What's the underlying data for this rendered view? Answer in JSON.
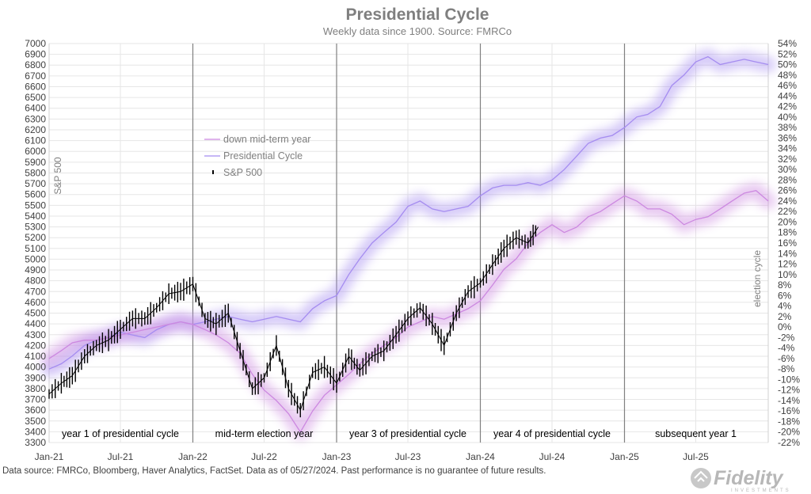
{
  "chart_data": {
    "type": "line",
    "title": "Presidential Cycle",
    "subtitle": "Weekly data since 1900. Source: FMRCo",
    "ylabel": "S&P 500",
    "y2label": "election cycle",
    "ylim": [
      3300,
      7000
    ],
    "ytick_step": 100,
    "y2lim": [
      -22,
      54
    ],
    "y2tick_step": 2,
    "xlim": [
      "2021-01-01",
      "2026-01-01"
    ],
    "x_ticks": [
      {
        "date": "2021-01-01",
        "label": "Jan-21"
      },
      {
        "date": "2021-07-01",
        "label": "Jul-21"
      },
      {
        "date": "2022-01-01",
        "label": "Jan-22"
      },
      {
        "date": "2022-07-01",
        "label": "Jul-22"
      },
      {
        "date": "2023-01-01",
        "label": "Jan-23"
      },
      {
        "date": "2023-07-01",
        "label": "Jul-23"
      },
      {
        "date": "2024-01-01",
        "label": "Jan-24"
      },
      {
        "date": "2024-07-01",
        "label": "Jul-24"
      },
      {
        "date": "2025-01-01",
        "label": "Jan-25"
      },
      {
        "date": "2025-07-01",
        "label": "Jul-25"
      }
    ],
    "year_dividers": [
      "2022-01-01",
      "2023-01-01",
      "2024-01-01",
      "2025-01-01"
    ],
    "periods": [
      {
        "label": "year 1 of presidential cycle",
        "center": "2021-07-01"
      },
      {
        "label": "mid-term election year",
        "center": "2022-07-01"
      },
      {
        "label": "year 3 of presidential cycle",
        "center": "2023-07-01"
      },
      {
        "label": "year 4 of presidential cycle",
        "center": "2024-07-01"
      },
      {
        "label": "subsequent year 1",
        "center": "2025-07-01"
      }
    ],
    "legend": {
      "position": "upper-left",
      "entries": [
        "down mid-term year",
        "Presidential Cycle",
        "S&P 500"
      ]
    },
    "grid": true,
    "series": [
      {
        "name": "Presidential Cycle",
        "axis": "right",
        "color": "#a58cf0",
        "points": [
          [
            "2021-01-01",
            -8.0
          ],
          [
            "2021-02-01",
            -7.0
          ],
          [
            "2021-03-01",
            -5.5
          ],
          [
            "2021-04-01",
            -3.5
          ],
          [
            "2021-05-01",
            -2.5
          ],
          [
            "2021-06-01",
            -2.0
          ],
          [
            "2021-07-01",
            -1.0
          ],
          [
            "2021-08-01",
            -1.5
          ],
          [
            "2021-09-01",
            -2.0
          ],
          [
            "2021-10-01",
            -0.5
          ],
          [
            "2021-11-01",
            0.5
          ],
          [
            "2021-12-01",
            1.0
          ],
          [
            "2022-01-01",
            0.5
          ],
          [
            "2022-02-01",
            1.0
          ],
          [
            "2022-03-01",
            1.5
          ],
          [
            "2022-04-01",
            2.0
          ],
          [
            "2022-05-01",
            1.5
          ],
          [
            "2022-06-01",
            1.0
          ],
          [
            "2022-07-01",
            1.5
          ],
          [
            "2022-08-01",
            2.0
          ],
          [
            "2022-09-01",
            1.5
          ],
          [
            "2022-10-01",
            1.0
          ],
          [
            "2022-11-01",
            3.5
          ],
          [
            "2022-12-01",
            5.0
          ],
          [
            "2023-01-01",
            6.0
          ],
          [
            "2023-02-01",
            10.0
          ],
          [
            "2023-03-01",
            13.0
          ],
          [
            "2023-04-01",
            16.0
          ],
          [
            "2023-05-01",
            18.0
          ],
          [
            "2023-06-01",
            20.0
          ],
          [
            "2023-07-01",
            23.0
          ],
          [
            "2023-08-01",
            24.0
          ],
          [
            "2023-09-01",
            22.5
          ],
          [
            "2023-10-01",
            22.0
          ],
          [
            "2023-11-01",
            22.5
          ],
          [
            "2023-12-01",
            23.0
          ],
          [
            "2024-01-01",
            25.0
          ],
          [
            "2024-02-01",
            26.5
          ],
          [
            "2024-03-01",
            27.0
          ],
          [
            "2024-04-01",
            27.0
          ],
          [
            "2024-05-01",
            27.5
          ],
          [
            "2024-06-01",
            27.0
          ],
          [
            "2024-07-01",
            28.0
          ],
          [
            "2024-08-01",
            30.0
          ],
          [
            "2024-09-01",
            32.5
          ],
          [
            "2024-10-01",
            35.0
          ],
          [
            "2024-11-01",
            36.0
          ],
          [
            "2024-12-01",
            36.5
          ],
          [
            "2025-01-01",
            38.0
          ],
          [
            "2025-02-01",
            40.0
          ],
          [
            "2025-03-01",
            40.5
          ],
          [
            "2025-04-01",
            42.0
          ],
          [
            "2025-05-01",
            46.0
          ],
          [
            "2025-06-01",
            48.0
          ],
          [
            "2025-07-01",
            50.5
          ],
          [
            "2025-08-01",
            51.5
          ],
          [
            "2025-09-01",
            50.0
          ],
          [
            "2025-10-01",
            50.5
          ],
          [
            "2025-11-01",
            51.0
          ],
          [
            "2025-12-01",
            50.5
          ],
          [
            "2026-01-01",
            50.0
          ]
        ]
      },
      {
        "name": "down mid-term year",
        "axis": "right",
        "color": "#cc88e0",
        "points": [
          [
            "2021-01-01",
            -6.0
          ],
          [
            "2021-02-01",
            -4.5
          ],
          [
            "2021-03-01",
            -3.0
          ],
          [
            "2021-04-01",
            -2.5
          ],
          [
            "2021-05-01",
            -2.5
          ],
          [
            "2021-06-01",
            -2.0
          ],
          [
            "2021-07-01",
            -1.5
          ],
          [
            "2021-08-01",
            -1.0
          ],
          [
            "2021-09-01",
            -0.5
          ],
          [
            "2021-10-01",
            0.0
          ],
          [
            "2021-11-01",
            0.5
          ],
          [
            "2021-12-01",
            1.0
          ],
          [
            "2022-01-01",
            0.5
          ],
          [
            "2022-02-01",
            -0.5
          ],
          [
            "2022-03-01",
            -1.5
          ],
          [
            "2022-04-01",
            -3.0
          ],
          [
            "2022-05-01",
            -5.0
          ],
          [
            "2022-06-01",
            -9.0
          ],
          [
            "2022-07-01",
            -12.0
          ],
          [
            "2022-08-01",
            -14.0
          ],
          [
            "2022-09-01",
            -16.5
          ],
          [
            "2022-10-01",
            -20.0
          ],
          [
            "2022-11-01",
            -16.0
          ],
          [
            "2022-12-01",
            -13.0
          ],
          [
            "2023-01-01",
            -11.0
          ],
          [
            "2023-02-01",
            -9.0
          ],
          [
            "2023-03-01",
            -7.0
          ],
          [
            "2023-04-01",
            -5.0
          ],
          [
            "2023-05-01",
            -3.5
          ],
          [
            "2023-06-01",
            -2.0
          ],
          [
            "2023-07-01",
            0.0
          ],
          [
            "2023-08-01",
            1.0
          ],
          [
            "2023-09-01",
            2.0
          ],
          [
            "2023-10-01",
            1.5
          ],
          [
            "2023-11-01",
            2.5
          ],
          [
            "2023-12-01",
            3.5
          ],
          [
            "2024-01-01",
            5.0
          ],
          [
            "2024-02-01",
            8.0
          ],
          [
            "2024-03-01",
            11.0
          ],
          [
            "2024-04-01",
            13.0
          ],
          [
            "2024-05-01",
            16.0
          ],
          [
            "2024-06-01",
            18.0
          ],
          [
            "2024-07-01",
            19.5
          ],
          [
            "2024-08-01",
            18.0
          ],
          [
            "2024-09-01",
            19.0
          ],
          [
            "2024-10-01",
            21.0
          ],
          [
            "2024-11-01",
            22.0
          ],
          [
            "2024-12-01",
            23.5
          ],
          [
            "2025-01-01",
            25.0
          ],
          [
            "2025-02-01",
            24.0
          ],
          [
            "2025-03-01",
            22.5
          ],
          [
            "2025-04-01",
            22.5
          ],
          [
            "2025-05-01",
            21.5
          ],
          [
            "2025-06-01",
            19.5
          ],
          [
            "2025-07-01",
            20.5
          ],
          [
            "2025-08-01",
            21.0
          ],
          [
            "2025-09-01",
            22.5
          ],
          [
            "2025-10-01",
            24.0
          ],
          [
            "2025-11-01",
            25.5
          ],
          [
            "2025-12-01",
            26.0
          ],
          [
            "2026-01-01",
            24.0
          ]
        ]
      },
      {
        "name": "S&P 500",
        "axis": "left",
        "color": "#000000",
        "points": [
          [
            "2021-01-01",
            3750
          ],
          [
            "2021-02-01",
            3850
          ],
          [
            "2021-03-01",
            3920
          ],
          [
            "2021-04-01",
            4100
          ],
          [
            "2021-05-01",
            4200
          ],
          [
            "2021-06-01",
            4250
          ],
          [
            "2021-07-01",
            4350
          ],
          [
            "2021-08-01",
            4450
          ],
          [
            "2021-09-01",
            4450
          ],
          [
            "2021-10-01",
            4550
          ],
          [
            "2021-11-01",
            4680
          ],
          [
            "2021-12-01",
            4700
          ],
          [
            "2022-01-01",
            4770
          ],
          [
            "2022-02-01",
            4450
          ],
          [
            "2022-03-01",
            4400
          ],
          [
            "2022-04-01",
            4500
          ],
          [
            "2022-05-01",
            4150
          ],
          [
            "2022-06-01",
            3800
          ],
          [
            "2022-07-01",
            3900
          ],
          [
            "2022-08-01",
            4200
          ],
          [
            "2022-09-01",
            3800
          ],
          [
            "2022-10-01",
            3600
          ],
          [
            "2022-11-01",
            3950
          ],
          [
            "2022-12-01",
            4000
          ],
          [
            "2023-01-01",
            3850
          ],
          [
            "2023-02-01",
            4100
          ],
          [
            "2023-03-01",
            3970
          ],
          [
            "2023-04-01",
            4100
          ],
          [
            "2023-05-01",
            4150
          ],
          [
            "2023-06-01",
            4300
          ],
          [
            "2023-07-01",
            4450
          ],
          [
            "2023-08-01",
            4550
          ],
          [
            "2023-09-01",
            4400
          ],
          [
            "2023-10-01",
            4200
          ],
          [
            "2023-11-01",
            4500
          ],
          [
            "2023-12-01",
            4700
          ],
          [
            "2024-01-01",
            4780
          ],
          [
            "2024-02-01",
            4950
          ],
          [
            "2024-03-01",
            5100
          ],
          [
            "2024-04-01",
            5200
          ],
          [
            "2024-05-01",
            5150
          ],
          [
            "2024-05-27",
            5300
          ]
        ]
      }
    ]
  },
  "footer": {
    "source": "Data source: FMRCo, Bloomberg, Haver Analytics, FactSet. Data as of 05/27/2024. Past performance is no guarantee of future results."
  },
  "logo": {
    "text": "Fidelity",
    "subtext": "INVESTMENTS"
  }
}
